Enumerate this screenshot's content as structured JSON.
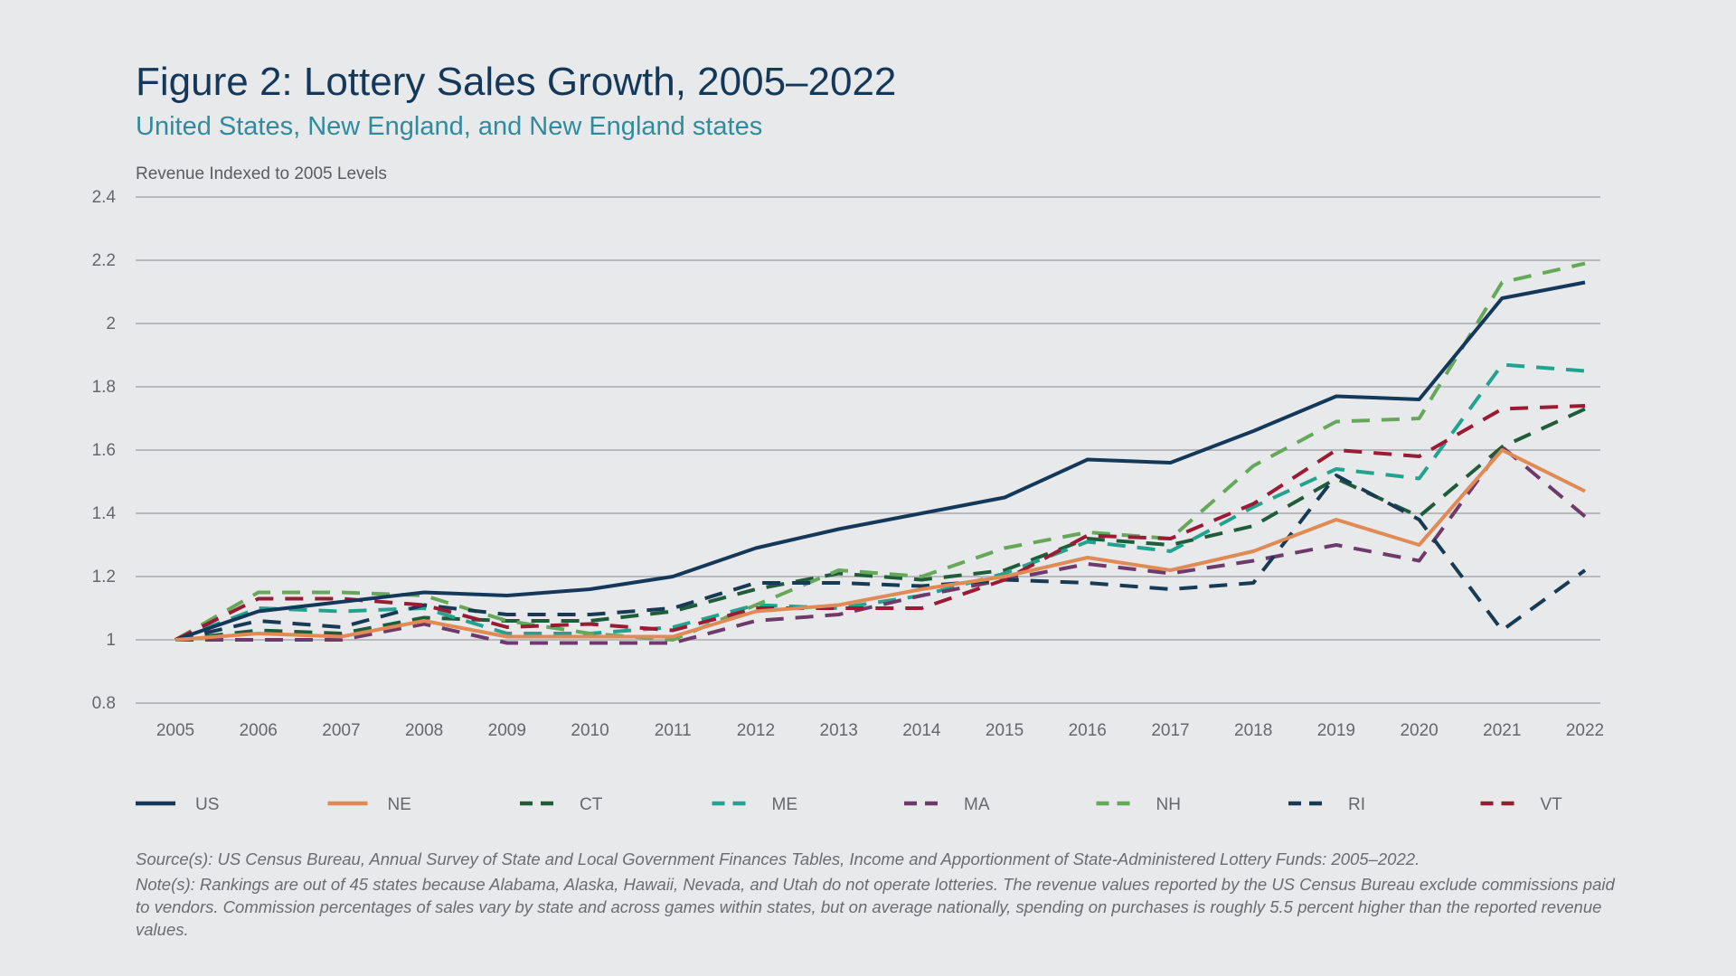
{
  "title": "Figure 2: Lottery Sales Growth, 2005–2022",
  "subtitle": "United States, New England, and New England states",
  "source": "Source(s): US Census Bureau, Annual Survey of State and Local Government Finances Tables, Income and Apportionment of State-Administered Lottery Funds: 2005–2022.",
  "note": "Note(s): Rankings are out of 45 states because Alabama, Alaska, Hawaii, Nevada, and Utah do not operate lotteries. The revenue values reported by the US Census Bureau exclude commissions paid to vendors. Commission percentages of sales vary by state and across games within states, but on average nationally, spending on purchases is roughly 5.5 percent higher than the reported revenue values.",
  "chart_data": {
    "type": "line",
    "ylabel": "Revenue Indexed to 2005 Levels",
    "ylim": [
      0.8,
      2.4
    ],
    "yticks": [
      "0.8",
      "1",
      "1.2",
      "1.4",
      "1.6",
      "1.8",
      "2",
      "2.2",
      "2.4"
    ],
    "ytick_values": [
      0.8,
      1.0,
      1.2,
      1.4,
      1.6,
      1.8,
      2.0,
      2.2,
      2.4
    ],
    "grid": "horizontal",
    "legend_placement": "bottom",
    "x": [
      "2005",
      "2006",
      "2007",
      "2008",
      "2009",
      "2010",
      "2011",
      "2012",
      "2013",
      "2014",
      "2015",
      "2016",
      "2017",
      "2018",
      "2019",
      "2020",
      "2021",
      "2022"
    ],
    "series": [
      {
        "name": "US",
        "color": "#14385a",
        "style": "solid",
        "values": [
          1.0,
          1.09,
          1.12,
          1.15,
          1.14,
          1.16,
          1.2,
          1.29,
          1.35,
          1.4,
          1.45,
          1.57,
          1.56,
          1.66,
          1.77,
          1.76,
          2.08,
          2.13
        ]
      },
      {
        "name": "NE",
        "color": "#e08a55",
        "style": "solid",
        "values": [
          1.0,
          1.02,
          1.01,
          1.06,
          1.01,
          1.01,
          1.01,
          1.09,
          1.11,
          1.16,
          1.2,
          1.26,
          1.22,
          1.28,
          1.38,
          1.3,
          1.6,
          1.47
        ]
      },
      {
        "name": "CT",
        "color": "#1e5c3a",
        "style": "dashed",
        "values": [
          1.0,
          1.03,
          1.02,
          1.07,
          1.06,
          1.06,
          1.09,
          1.16,
          1.21,
          1.19,
          1.22,
          1.32,
          1.3,
          1.36,
          1.51,
          1.39,
          1.61,
          1.73
        ]
      },
      {
        "name": "ME",
        "color": "#22a38f",
        "style": "dashed",
        "values": [
          1.0,
          1.1,
          1.09,
          1.1,
          1.02,
          1.02,
          1.04,
          1.11,
          1.1,
          1.14,
          1.21,
          1.31,
          1.28,
          1.42,
          1.54,
          1.51,
          1.87,
          1.85
        ]
      },
      {
        "name": "MA",
        "color": "#6e3a6c",
        "style": "dashed",
        "values": [
          1.0,
          1.0,
          1.0,
          1.05,
          0.99,
          0.99,
          0.99,
          1.06,
          1.08,
          1.14,
          1.19,
          1.24,
          1.21,
          1.25,
          1.3,
          1.25,
          1.61,
          1.39
        ]
      },
      {
        "name": "NH",
        "color": "#65a85a",
        "style": "dashed",
        "values": [
          1.0,
          1.15,
          1.15,
          1.14,
          1.06,
          1.02,
          1.0,
          1.11,
          1.22,
          1.2,
          1.29,
          1.34,
          1.32,
          1.55,
          1.69,
          1.7,
          2.13,
          2.19
        ]
      },
      {
        "name": "RI",
        "color": "#173a55",
        "style": "dashed",
        "values": [
          1.0,
          1.06,
          1.04,
          1.11,
          1.08,
          1.08,
          1.1,
          1.18,
          1.18,
          1.17,
          1.19,
          1.18,
          1.16,
          1.18,
          1.52,
          1.38,
          1.03,
          1.22
        ]
      },
      {
        "name": "VT",
        "color": "#9a1b33",
        "style": "dashed",
        "values": [
          1.0,
          1.13,
          1.13,
          1.11,
          1.04,
          1.05,
          1.03,
          1.1,
          1.1,
          1.1,
          1.19,
          1.33,
          1.32,
          1.43,
          1.6,
          1.58,
          1.73,
          1.74
        ]
      }
    ]
  }
}
